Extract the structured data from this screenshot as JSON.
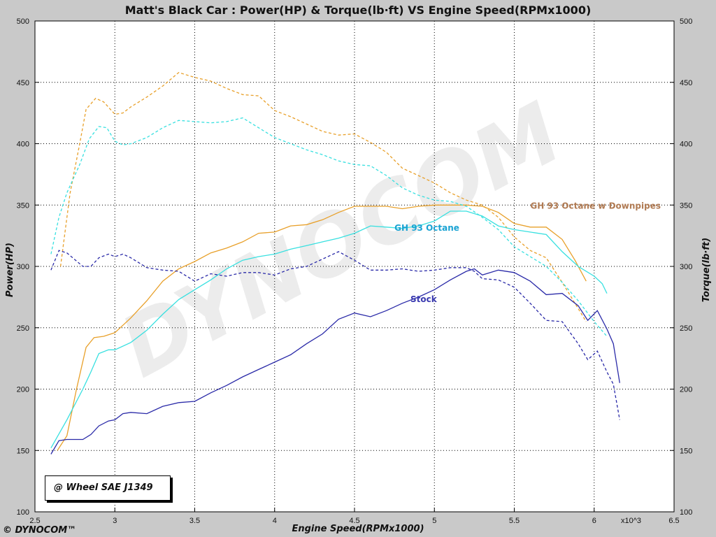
{
  "chart_data": {
    "type": "line",
    "title": "Matt's Black Car : Power(HP) & Torque(lb·ft) VS Engine Speed(RPMx1000)",
    "xlabel": "Engine Speed(RPMx1000)",
    "ylabel_left": "Power(HP)",
    "ylabel_right": "Torque(lb·ft)",
    "x_multiplier_label": "x10^3",
    "xlim": [
      2.5,
      6.5
    ],
    "ylim": [
      100,
      500
    ],
    "x_ticks": [
      "2.5",
      "3",
      "3.5",
      "4",
      "4.5",
      "5",
      "5.5",
      "6",
      "6.5"
    ],
    "y_ticks": [
      "100",
      "150",
      "200",
      "250",
      "300",
      "350",
      "400",
      "450",
      "500"
    ],
    "grid": true,
    "conditions_label": "@ Wheel SAE J1349",
    "brand": "© DYNOCOM™",
    "watermark": "DYNOCOM",
    "series": [
      {
        "name": "GH 93 Octane w Downpipes",
        "color": "#e8a02a",
        "label_color": "#b07a52",
        "label_pos": [
          5.6,
          347
        ],
        "power": [
          [
            2.64,
            150
          ],
          [
            2.7,
            162
          ],
          [
            2.76,
            200
          ],
          [
            2.82,
            234
          ],
          [
            2.87,
            242
          ],
          [
            2.93,
            243
          ],
          [
            3.0,
            246
          ],
          [
            3.1,
            258
          ],
          [
            3.2,
            272
          ],
          [
            3.3,
            288
          ],
          [
            3.4,
            298
          ],
          [
            3.5,
            304
          ],
          [
            3.6,
            311
          ],
          [
            3.7,
            315
          ],
          [
            3.8,
            320
          ],
          [
            3.9,
            327
          ],
          [
            4.0,
            328
          ],
          [
            4.1,
            333
          ],
          [
            4.2,
            334
          ],
          [
            4.3,
            338
          ],
          [
            4.4,
            344
          ],
          [
            4.5,
            349
          ],
          [
            4.6,
            349
          ],
          [
            4.7,
            349
          ],
          [
            4.8,
            347
          ],
          [
            4.9,
            349
          ],
          [
            5.0,
            350
          ],
          [
            5.1,
            350
          ],
          [
            5.2,
            350
          ],
          [
            5.3,
            349
          ],
          [
            5.4,
            344
          ],
          [
            5.5,
            335
          ],
          [
            5.6,
            332
          ],
          [
            5.7,
            332
          ],
          [
            5.8,
            322
          ],
          [
            5.88,
            305
          ],
          [
            5.95,
            288
          ]
        ],
        "torque": [
          [
            2.66,
            300
          ],
          [
            2.72,
            360
          ],
          [
            2.78,
            400
          ],
          [
            2.82,
            428
          ],
          [
            2.88,
            437
          ],
          [
            2.93,
            434
          ],
          [
            3.0,
            424
          ],
          [
            3.05,
            425
          ],
          [
            3.1,
            430
          ],
          [
            3.2,
            438
          ],
          [
            3.3,
            447
          ],
          [
            3.4,
            458
          ],
          [
            3.5,
            454
          ],
          [
            3.6,
            451
          ],
          [
            3.7,
            445
          ],
          [
            3.8,
            440
          ],
          [
            3.9,
            439
          ],
          [
            4.0,
            427
          ],
          [
            4.1,
            422
          ],
          [
            4.2,
            416
          ],
          [
            4.3,
            410
          ],
          [
            4.4,
            407
          ],
          [
            4.5,
            408
          ],
          [
            4.6,
            401
          ],
          [
            4.7,
            393
          ],
          [
            4.8,
            380
          ],
          [
            4.9,
            374
          ],
          [
            5.0,
            368
          ],
          [
            5.1,
            360
          ],
          [
            5.2,
            354
          ],
          [
            5.3,
            350
          ],
          [
            5.4,
            340
          ],
          [
            5.5,
            324
          ],
          [
            5.6,
            313
          ],
          [
            5.7,
            307
          ],
          [
            5.8,
            287
          ],
          [
            5.88,
            270
          ],
          [
            5.95,
            255
          ]
        ]
      },
      {
        "name": "GH 93 Octane",
        "color": "#38e0e0",
        "label_color": "#1aa3d3",
        "label_pos": [
          4.75,
          329
        ],
        "power": [
          [
            2.6,
            152
          ],
          [
            2.7,
            175
          ],
          [
            2.8,
            200
          ],
          [
            2.85,
            214
          ],
          [
            2.9,
            229
          ],
          [
            2.96,
            232
          ],
          [
            3.0,
            232
          ],
          [
            3.1,
            238
          ],
          [
            3.2,
            248
          ],
          [
            3.3,
            261
          ],
          [
            3.4,
            273
          ],
          [
            3.5,
            281
          ],
          [
            3.6,
            289
          ],
          [
            3.7,
            298
          ],
          [
            3.8,
            305
          ],
          [
            3.9,
            308
          ],
          [
            4.0,
            310
          ],
          [
            4.1,
            314
          ],
          [
            4.2,
            317
          ],
          [
            4.3,
            320
          ],
          [
            4.4,
            323
          ],
          [
            4.5,
            327
          ],
          [
            4.6,
            333
          ],
          [
            4.7,
            332
          ],
          [
            4.8,
            331
          ],
          [
            4.9,
            333
          ],
          [
            5.0,
            337
          ],
          [
            5.1,
            345
          ],
          [
            5.2,
            345
          ],
          [
            5.3,
            341
          ],
          [
            5.4,
            333
          ],
          [
            5.5,
            330
          ],
          [
            5.6,
            328
          ],
          [
            5.7,
            326
          ],
          [
            5.8,
            312
          ],
          [
            5.9,
            300
          ],
          [
            6.0,
            292
          ],
          [
            6.05,
            286
          ],
          [
            6.08,
            278
          ]
        ],
        "torque": [
          [
            2.6,
            310
          ],
          [
            2.65,
            340
          ],
          [
            2.7,
            360
          ],
          [
            2.78,
            383
          ],
          [
            2.84,
            404
          ],
          [
            2.9,
            414
          ],
          [
            2.95,
            413
          ],
          [
            3.0,
            402
          ],
          [
            3.05,
            399
          ],
          [
            3.1,
            400
          ],
          [
            3.2,
            405
          ],
          [
            3.3,
            413
          ],
          [
            3.4,
            419
          ],
          [
            3.5,
            418
          ],
          [
            3.6,
            417
          ],
          [
            3.7,
            418
          ],
          [
            3.8,
            421
          ],
          [
            3.9,
            413
          ],
          [
            4.0,
            405
          ],
          [
            4.1,
            400
          ],
          [
            4.2,
            395
          ],
          [
            4.3,
            391
          ],
          [
            4.4,
            386
          ],
          [
            4.5,
            383
          ],
          [
            4.6,
            382
          ],
          [
            4.7,
            374
          ],
          [
            4.8,
            364
          ],
          [
            4.9,
            358
          ],
          [
            5.0,
            354
          ],
          [
            5.1,
            353
          ],
          [
            5.2,
            349
          ],
          [
            5.3,
            340
          ],
          [
            5.4,
            330
          ],
          [
            5.5,
            316
          ],
          [
            5.6,
            308
          ],
          [
            5.7,
            300
          ],
          [
            5.8,
            287
          ],
          [
            5.9,
            272
          ],
          [
            6.0,
            255
          ],
          [
            6.08,
            243
          ]
        ]
      },
      {
        "name": "Stock",
        "color": "#2a2aa8",
        "label_color": "#3a3ab0",
        "label_pos": [
          4.85,
          271
        ],
        "power": [
          [
            2.6,
            147
          ],
          [
            2.65,
            158
          ],
          [
            2.7,
            159
          ],
          [
            2.8,
            159
          ],
          [
            2.85,
            163
          ],
          [
            2.9,
            170
          ],
          [
            2.96,
            174
          ],
          [
            3.0,
            175
          ],
          [
            3.05,
            180
          ],
          [
            3.1,
            181
          ],
          [
            3.2,
            180
          ],
          [
            3.3,
            186
          ],
          [
            3.4,
            189
          ],
          [
            3.5,
            190
          ],
          [
            3.6,
            197
          ],
          [
            3.7,
            203
          ],
          [
            3.8,
            210
          ],
          [
            3.9,
            216
          ],
          [
            4.0,
            222
          ],
          [
            4.1,
            228
          ],
          [
            4.2,
            237
          ],
          [
            4.3,
            245
          ],
          [
            4.4,
            257
          ],
          [
            4.5,
            262
          ],
          [
            4.6,
            259
          ],
          [
            4.7,
            264
          ],
          [
            4.8,
            270
          ],
          [
            4.9,
            275
          ],
          [
            5.0,
            281
          ],
          [
            5.1,
            289
          ],
          [
            5.2,
            296
          ],
          [
            5.25,
            298
          ],
          [
            5.3,
            293
          ],
          [
            5.4,
            297
          ],
          [
            5.5,
            295
          ],
          [
            5.6,
            288
          ],
          [
            5.7,
            277
          ],
          [
            5.8,
            278
          ],
          [
            5.9,
            268
          ],
          [
            5.96,
            256
          ],
          [
            6.02,
            264
          ],
          [
            6.08,
            249
          ],
          [
            6.12,
            237
          ],
          [
            6.16,
            205
          ]
        ],
        "torque": [
          [
            2.6,
            297
          ],
          [
            2.65,
            313
          ],
          [
            2.7,
            311
          ],
          [
            2.8,
            300
          ],
          [
            2.85,
            300
          ],
          [
            2.9,
            307
          ],
          [
            2.96,
            310
          ],
          [
            3.0,
            308
          ],
          [
            3.05,
            310
          ],
          [
            3.1,
            307
          ],
          [
            3.2,
            299
          ],
          [
            3.3,
            297
          ],
          [
            3.4,
            296
          ],
          [
            3.5,
            288
          ],
          [
            3.6,
            294
          ],
          [
            3.7,
            292
          ],
          [
            3.8,
            295
          ],
          [
            3.9,
            295
          ],
          [
            4.0,
            293
          ],
          [
            4.1,
            298
          ],
          [
            4.2,
            300
          ],
          [
            4.3,
            306
          ],
          [
            4.4,
            312
          ],
          [
            4.5,
            305
          ],
          [
            4.6,
            297
          ],
          [
            4.7,
            297
          ],
          [
            4.8,
            298
          ],
          [
            4.9,
            296
          ],
          [
            5.0,
            297
          ],
          [
            5.1,
            299
          ],
          [
            5.2,
            299
          ],
          [
            5.25,
            296
          ],
          [
            5.3,
            290
          ],
          [
            5.4,
            289
          ],
          [
            5.5,
            283
          ],
          [
            5.6,
            270
          ],
          [
            5.7,
            256
          ],
          [
            5.8,
            255
          ],
          [
            5.9,
            237
          ],
          [
            5.96,
            224
          ],
          [
            6.02,
            231
          ],
          [
            6.08,
            214
          ],
          [
            6.12,
            204
          ],
          [
            6.16,
            175
          ]
        ]
      }
    ]
  }
}
